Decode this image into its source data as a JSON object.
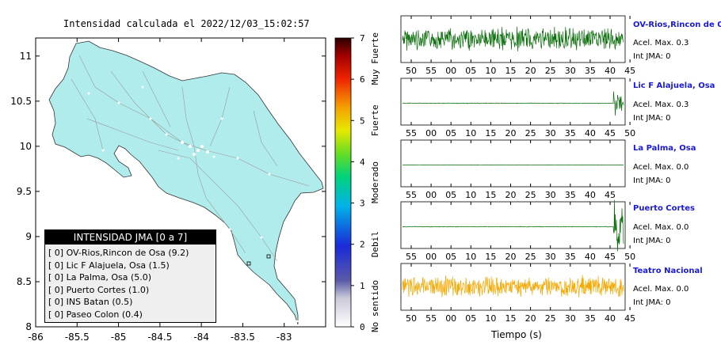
{
  "map": {
    "title": "Intensidad calculada el 2022/12/03_15:02:57",
    "land_color": "#b0eceb",
    "x_ticks": [
      "-86",
      "-85.5",
      "-85",
      "-84.5",
      "-84",
      "-83.5",
      "-83"
    ],
    "y_ticks": [
      "11",
      "10.5",
      "10",
      "9.5",
      "9",
      "8.5",
      "8"
    ],
    "xlim": [
      -86,
      -82.5
    ],
    "ylim": [
      8,
      11.2
    ]
  },
  "legend": {
    "title": "INTENSIDAD JMA [0 a 7]",
    "items": [
      "[ 0]  OV-Rios,Rincon de Osa (9.2)",
      "[ 0]  Lic F Alajuela, Osa (1.5)",
      "[ 0]  La Palma, Osa (5.0)",
      "[ 0]  Puerto Cortes (1.0)",
      "[ 0]  INS Batan (0.5)",
      "[ 0]  Paseo Colon (0.4)"
    ]
  },
  "scale": {
    "tick_labels": [
      "0",
      "1",
      "2",
      "3",
      "4",
      "5",
      "6",
      "7"
    ],
    "categories": [
      "No sentido",
      "Debil",
      "Moderado",
      "Fuerte",
      "Muy Fuerte"
    ]
  },
  "channels": [
    {
      "title": "OV-Rios,Rincon de Osa",
      "acel": "Acel. Max. 0.3",
      "jma": "Int JMA: 0",
      "ticks": [
        "50",
        "55",
        "00",
        "05",
        "10",
        "15",
        "20",
        "25",
        "30",
        "35",
        "40",
        "45"
      ],
      "color": "#0a6e0a",
      "kind": "full"
    },
    {
      "title": "Lic F Alajuela, Osa",
      "acel": "Acel. Max. 0.3",
      "jma": "Int JMA: 0",
      "ticks": [
        "55",
        "00",
        "05",
        "10",
        "15",
        "20",
        "25",
        "30",
        "35",
        "40",
        "45",
        "50"
      ],
      "color": "#0a6e0a",
      "kind": "burst"
    },
    {
      "title": "La Palma, Osa",
      "acel": "Acel. Max. 0.0",
      "jma": "Int JMA: 0",
      "ticks": [
        "55",
        "00",
        "05",
        "10",
        "15",
        "20",
        "25",
        "30",
        "35",
        "40",
        "45"
      ],
      "color": "#0a6e0a",
      "kind": "flat"
    },
    {
      "title": "Puerto Cortes",
      "acel": "Acel. Max. 0.0",
      "jma": "Int JMA: 0",
      "ticks": [
        "55",
        "00",
        "05",
        "10",
        "15",
        "20",
        "25",
        "30",
        "35",
        "40",
        "45",
        "50"
      ],
      "color": "#0a6e0a",
      "kind": "burst"
    },
    {
      "title": "Teatro Nacional",
      "acel": "Acel. Max. 0.0",
      "jma": "Int JMA: 0",
      "ticks": [
        "50",
        "55",
        "00",
        "05",
        "10",
        "15",
        "20",
        "25",
        "30",
        "35",
        "40",
        "45"
      ],
      "color": "#f5a800",
      "kind": "full"
    }
  ],
  "time_axis_label": "Tiempo (s)",
  "chart_data": {
    "type": "line",
    "title": "Intensidad calculada el 2022/12/03_15:02:57",
    "xlabel": "Tiempo (s)",
    "series": [
      {
        "name": "OV-Rios,Rincon de Osa",
        "acel_max": 0.3,
        "int_jma": 0
      },
      {
        "name": "Lic F Alajuela, Osa",
        "acel_max": 0.3,
        "int_jma": 0
      },
      {
        "name": "La Palma, Osa",
        "acel_max": 0.0,
        "int_jma": 0
      },
      {
        "name": "Puerto Cortes",
        "acel_max": 0.0,
        "int_jma": 0
      },
      {
        "name": "Teatro Nacional",
        "acel_max": 0.0,
        "int_jma": 0
      }
    ]
  }
}
